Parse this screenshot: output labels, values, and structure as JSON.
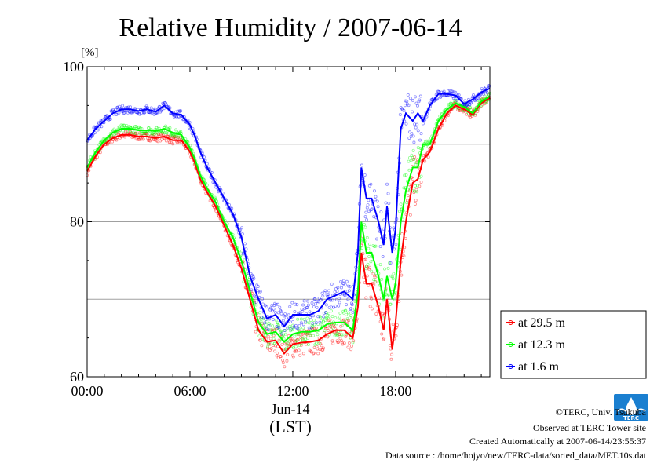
{
  "chart_data": {
    "type": "line",
    "title": "Relative Humidity / 2007-06-14",
    "ylabel": "[%]",
    "xlabel": "(LST)",
    "x_sublabel": "Jun-14",
    "ylim": [
      60,
      100
    ],
    "xlim_hours": [
      0,
      23.5
    ],
    "x_ticks": [
      {
        "h": 0,
        "label": "00:00"
      },
      {
        "h": 6,
        "label": "06:00"
      },
      {
        "h": 12,
        "label": "12:00"
      },
      {
        "h": 18,
        "label": "18:00"
      }
    ],
    "y_ticks": [
      {
        "v": 60,
        "label": "60"
      },
      {
        "v": 80,
        "label": "80"
      },
      {
        "v": 100,
        "label": "100"
      }
    ],
    "grid": true,
    "legend_position": "right",
    "series": [
      {
        "name": "at 29.5 m",
        "color": "#ff0000",
        "points": [
          [
            0,
            86.5
          ],
          [
            0.5,
            88.5
          ],
          [
            1,
            90
          ],
          [
            1.5,
            90.8
          ],
          [
            2,
            91.2
          ],
          [
            2.5,
            91.2
          ],
          [
            3,
            91
          ],
          [
            3.5,
            91
          ],
          [
            4,
            90.8
          ],
          [
            4.5,
            91
          ],
          [
            5,
            90.5
          ],
          [
            5.5,
            90.5
          ],
          [
            6,
            89
          ],
          [
            6.3,
            87.5
          ],
          [
            6.6,
            85.5
          ],
          [
            7,
            83.8
          ],
          [
            7.5,
            82
          ],
          [
            8,
            79.5
          ],
          [
            8.5,
            77
          ],
          [
            9,
            74
          ],
          [
            9.5,
            70
          ],
          [
            10,
            66
          ],
          [
            10.5,
            64.5
          ],
          [
            11,
            64.7
          ],
          [
            11.5,
            63
          ],
          [
            12,
            64.2
          ],
          [
            12.5,
            64.4
          ],
          [
            13,
            64.5
          ],
          [
            13.5,
            64.7
          ],
          [
            14,
            65.5
          ],
          [
            14.5,
            66
          ],
          [
            15,
            66
          ],
          [
            15.5,
            65
          ],
          [
            15.8,
            69
          ],
          [
            16,
            76
          ],
          [
            16.3,
            72
          ],
          [
            16.6,
            72
          ],
          [
            17,
            69
          ],
          [
            17.3,
            66
          ],
          [
            17.5,
            70
          ],
          [
            17.8,
            63.5
          ],
          [
            18,
            67
          ],
          [
            18.3,
            75
          ],
          [
            18.6,
            80
          ],
          [
            19,
            85
          ],
          [
            19.3,
            85.5
          ],
          [
            19.6,
            88
          ],
          [
            20,
            89
          ],
          [
            20.5,
            92
          ],
          [
            21,
            94
          ],
          [
            21.5,
            95
          ],
          [
            22,
            94.5
          ],
          [
            22.5,
            93.8
          ],
          [
            23,
            95.3
          ],
          [
            23.5,
            96
          ]
        ]
      },
      {
        "name": "at 12.3 m",
        "color": "#00ff00",
        "points": [
          [
            0,
            87
          ],
          [
            0.5,
            89
          ],
          [
            1,
            90.5
          ],
          [
            1.5,
            91.5
          ],
          [
            2,
            92
          ],
          [
            2.5,
            92
          ],
          [
            3,
            91.8
          ],
          [
            3.5,
            91.8
          ],
          [
            4,
            91.7
          ],
          [
            4.5,
            92
          ],
          [
            5,
            91.5
          ],
          [
            5.5,
            91.2
          ],
          [
            6,
            89.5
          ],
          [
            6.3,
            88
          ],
          [
            6.6,
            86
          ],
          [
            7,
            84.3
          ],
          [
            7.5,
            82.5
          ],
          [
            8,
            80
          ],
          [
            8.5,
            78
          ],
          [
            9,
            75
          ],
          [
            9.5,
            71
          ],
          [
            10,
            67
          ],
          [
            10.5,
            65.5
          ],
          [
            11,
            65.8
          ],
          [
            11.5,
            64.5
          ],
          [
            12,
            65.5
          ],
          [
            12.5,
            65.8
          ],
          [
            13,
            65.8
          ],
          [
            13.5,
            66
          ],
          [
            14,
            66.8
          ],
          [
            14.5,
            67
          ],
          [
            15,
            67
          ],
          [
            15.5,
            66
          ],
          [
            15.8,
            71
          ],
          [
            16,
            80
          ],
          [
            16.3,
            76
          ],
          [
            16.6,
            76
          ],
          [
            17,
            73
          ],
          [
            17.3,
            70
          ],
          [
            17.5,
            73
          ],
          [
            17.8,
            70
          ],
          [
            18,
            72
          ],
          [
            18.3,
            80
          ],
          [
            18.6,
            84
          ],
          [
            19,
            87
          ],
          [
            19.3,
            87
          ],
          [
            19.6,
            90
          ],
          [
            20,
            90
          ],
          [
            20.5,
            93
          ],
          [
            21,
            94.5
          ],
          [
            21.5,
            95.3
          ],
          [
            22,
            94.8
          ],
          [
            22.5,
            94
          ],
          [
            23,
            95.5
          ],
          [
            23.5,
            96.2
          ]
        ]
      },
      {
        "name": "at 1.6 m",
        "color": "#0000ff",
        "points": [
          [
            0,
            90.5
          ],
          [
            0.5,
            92
          ],
          [
            1,
            93
          ],
          [
            1.5,
            94
          ],
          [
            2,
            94.5
          ],
          [
            2.5,
            94.5
          ],
          [
            3,
            94.3
          ],
          [
            3.5,
            94.5
          ],
          [
            4,
            94.2
          ],
          [
            4.5,
            95
          ],
          [
            5,
            94
          ],
          [
            5.5,
            93.8
          ],
          [
            6,
            92.5
          ],
          [
            6.3,
            91
          ],
          [
            6.6,
            89
          ],
          [
            7,
            87
          ],
          [
            7.5,
            85
          ],
          [
            8,
            83
          ],
          [
            8.5,
            81
          ],
          [
            9,
            78
          ],
          [
            9.5,
            73
          ],
          [
            10,
            70
          ],
          [
            10.5,
            67.5
          ],
          [
            11,
            68
          ],
          [
            11.5,
            66.5
          ],
          [
            12,
            68
          ],
          [
            12.5,
            68
          ],
          [
            13,
            68
          ],
          [
            13.5,
            68.5
          ],
          [
            14,
            70
          ],
          [
            14.5,
            70.5
          ],
          [
            15,
            71
          ],
          [
            15.5,
            70
          ],
          [
            15.8,
            76
          ],
          [
            16,
            87
          ],
          [
            16.3,
            83
          ],
          [
            16.6,
            83
          ],
          [
            17,
            80
          ],
          [
            17.3,
            77
          ],
          [
            17.5,
            82
          ],
          [
            17.8,
            76
          ],
          [
            18,
            79
          ],
          [
            18.3,
            92
          ],
          [
            18.6,
            94
          ],
          [
            19,
            93
          ],
          [
            19.3,
            94
          ],
          [
            19.6,
            93
          ],
          [
            20,
            95
          ],
          [
            20.5,
            96.5
          ],
          [
            21,
            96.5
          ],
          [
            21.5,
            96.3
          ],
          [
            22,
            95.2
          ],
          [
            22.5,
            95.8
          ],
          [
            23,
            96.7
          ],
          [
            23.5,
            97.2
          ]
        ]
      }
    ]
  },
  "footer": {
    "copyright": "©TERC, Univ. Tsukuba",
    "observed": "Observed at TERC Tower site",
    "created": "Created Automatically at 2007-06-14/23:55:37",
    "source": "Data source : /home/hojyo/new/TERC-data/sorted_data/MET.10s.dat"
  },
  "logo": {
    "icon": "terc-logo-icon",
    "text": "TERC",
    "color": "#1a7fd0"
  }
}
